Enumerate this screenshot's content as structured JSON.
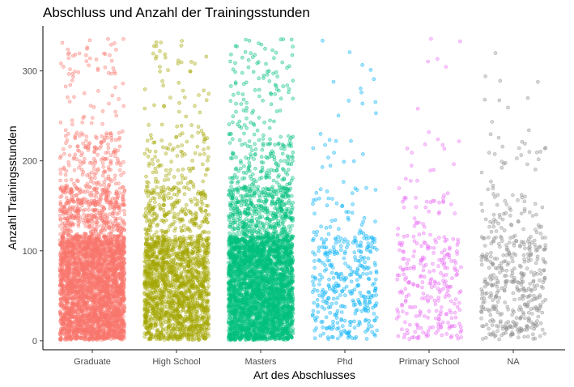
{
  "chart_data": {
    "type": "scatter",
    "title": "Abschluss und Anzahl der Trainingsstunden",
    "xlabel": "Art des Abschlusses",
    "ylabel": "Anzahl Trainingsstunden",
    "ylim": [
      -10,
      350
    ],
    "y_ticks": [
      0,
      100,
      200,
      300
    ],
    "grid": false,
    "jitter": true,
    "point_alpha": 0.35,
    "categories": [
      "Graduate",
      "High School",
      "Masters",
      "Phd",
      "Primary School",
      "NA"
    ],
    "series": [
      {
        "category": "Graduate",
        "color": "#F8766D",
        "approx_points": 11600,
        "range": [
          1,
          336
        ]
      },
      {
        "category": "High School",
        "color": "#A3A500",
        "approx_points": 2000,
        "range": [
          1,
          336
        ]
      },
      {
        "category": "Masters",
        "color": "#00BF7D",
        "approx_points": 4400,
        "range": [
          1,
          336
        ]
      },
      {
        "category": "Phd",
        "color": "#00B0F6",
        "approx_points": 410,
        "range": [
          1,
          336
        ]
      },
      {
        "category": "Primary School",
        "color": "#E76BF3",
        "approx_points": 300,
        "range": [
          1,
          336
        ]
      },
      {
        "category": "NA",
        "color": "#8C8C8C",
        "approx_points": 460,
        "range": [
          1,
          336
        ]
      }
    ]
  }
}
